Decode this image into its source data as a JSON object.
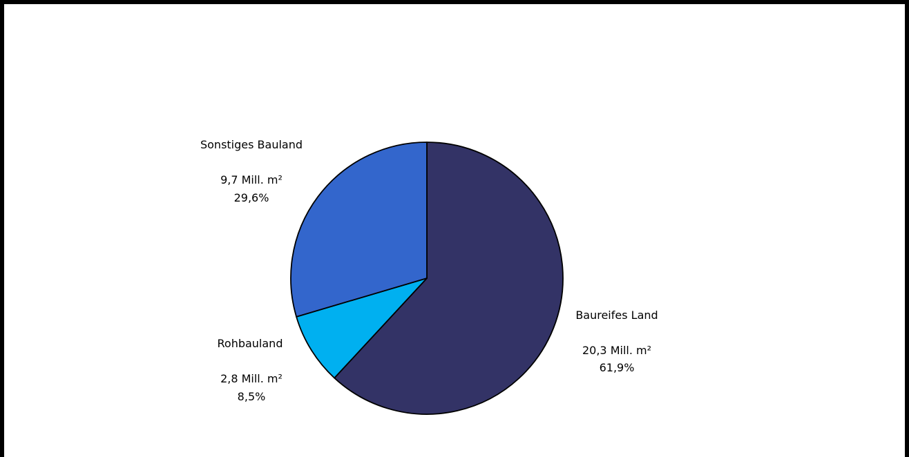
{
  "chart_data": {
    "type": "pie",
    "title": "",
    "unit": "Mill. m²",
    "start_angle_deg": 0,
    "direction": "clockwise",
    "slices": [
      {
        "name": "Baureifes Land",
        "value": 20.3,
        "value_label": "20,3 Mill. m²",
        "percent": 61.9,
        "percent_label": "61,9%",
        "color": "#333366"
      },
      {
        "name": "Rohbauland",
        "value": 2.8,
        "value_label": "2,8 Mill. m²",
        "percent": 8.5,
        "percent_label": "8,5%",
        "color": "#00B0F0"
      },
      {
        "name": "Sonstiges Bauland",
        "value": 9.7,
        "value_label": "9,7  Mill. m²",
        "percent": 29.6,
        "percent_label": "29,6%",
        "color": "#3366CC"
      }
    ]
  }
}
